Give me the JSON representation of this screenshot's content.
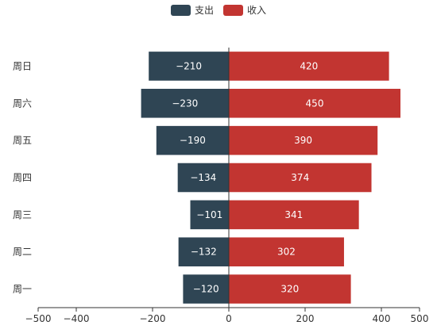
{
  "chart_data": {
    "type": "bar",
    "orientation": "horizontal",
    "stacked": true,
    "categories": [
      "周一",
      "周二",
      "周三",
      "周四",
      "周五",
      "周六",
      "周日"
    ],
    "series": [
      {
        "name": "支出",
        "color": "#2f4554",
        "values": [
          -120,
          -132,
          -101,
          -134,
          -190,
          -230,
          -210
        ],
        "labels": [
          "−120",
          "−132",
          "−101",
          "−134",
          "−190",
          "−230",
          "−210"
        ]
      },
      {
        "name": "收入",
        "color": "#c23531",
        "values": [
          320,
          302,
          341,
          374,
          390,
          450,
          420
        ],
        "labels": [
          "320",
          "302",
          "341",
          "374",
          "390",
          "450",
          "420"
        ]
      }
    ],
    "xlim": [
      -500,
      500
    ],
    "x_ticks": [
      -500,
      -400,
      -200,
      0,
      200,
      400,
      500
    ],
    "x_tick_labels": [
      "−500",
      "−400",
      "−200",
      "0",
      "200",
      "400",
      "500"
    ],
    "legend_position": "top-center",
    "grid": false
  }
}
